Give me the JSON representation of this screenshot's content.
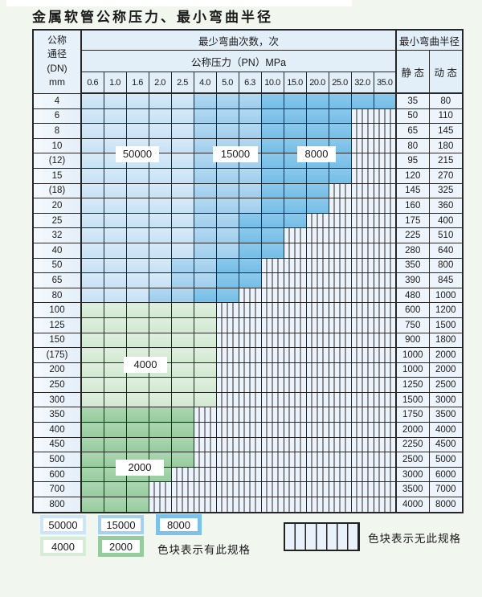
{
  "title": "金属软管公称压力、最小弯曲半径",
  "table": {
    "header": {
      "dn_lines": [
        "公称",
        "通径",
        "(DN)",
        "mm"
      ],
      "bend_cycles": "最少弯曲次数，次",
      "pressure": "公称压力（PN）MPa",
      "pressures": [
        "0.6",
        "1.0",
        "1.6",
        "2.0",
        "2.5",
        "4.0",
        "5.0",
        "6.3",
        "10.0",
        "15.0",
        "20.0",
        "25.0",
        "32.0",
        "35.0"
      ],
      "min_radius": "最小弯曲半径",
      "static": "静 态",
      "dynamic": "动 态"
    },
    "cell_legend": {
      "b1": {
        "cycles": "50000",
        "color": "#cde5f6"
      },
      "b2": {
        "cycles": "15000",
        "color": "#a5d1ee"
      },
      "b3": {
        "cycles": "8000",
        "color": "#7cc1e8"
      },
      "g1": {
        "cycles": "4000",
        "color": "#d7ecd7"
      },
      "g2": {
        "cycles": "2000",
        "color": "#96cb9d"
      },
      "x": {
        "meaning": "无此规格 (hatched)"
      }
    },
    "rows": [
      {
        "dn": "4",
        "static": "35",
        "dynamic": "80",
        "cells": [
          "b1",
          "b1",
          "b1",
          "b1",
          "b1",
          "b2",
          "b2",
          "b2",
          "b3",
          "b3",
          "b3",
          "b3",
          "b3",
          "b3"
        ]
      },
      {
        "dn": "6",
        "static": "50",
        "dynamic": "110",
        "cells": [
          "b1",
          "b1",
          "b1",
          "b1",
          "b1",
          "b2",
          "b2",
          "b2",
          "b3",
          "b3",
          "b3",
          "b3",
          "x",
          "x"
        ]
      },
      {
        "dn": "8",
        "static": "65",
        "dynamic": "145",
        "cells": [
          "b1",
          "b1",
          "b1",
          "b1",
          "b1",
          "b2",
          "b2",
          "b2",
          "b3",
          "b3",
          "b3",
          "b3",
          "x",
          "x"
        ]
      },
      {
        "dn": "10",
        "static": "80",
        "dynamic": "180",
        "cells": [
          "b1",
          "b1",
          "b1",
          "b1",
          "b1",
          "b2",
          "b2",
          "b2",
          "b3",
          "b3",
          "b3",
          "b3",
          "x",
          "x"
        ]
      },
      {
        "dn": "(12)",
        "static": "95",
        "dynamic": "215",
        "cells": [
          "b1",
          "b1",
          "b1",
          "b1",
          "b1",
          "b2",
          "b2",
          "b2",
          "b3",
          "b3",
          "b3",
          "b3",
          "x",
          "x"
        ]
      },
      {
        "dn": "15",
        "static": "120",
        "dynamic": "270",
        "cells": [
          "b1",
          "b1",
          "b1",
          "b1",
          "b1",
          "b2",
          "b2",
          "b2",
          "b3",
          "b3",
          "b3",
          "b3",
          "x",
          "x"
        ]
      },
      {
        "dn": "(18)",
        "static": "145",
        "dynamic": "325",
        "cells": [
          "b1",
          "b1",
          "b1",
          "b1",
          "b1",
          "b2",
          "b2",
          "b2",
          "b3",
          "b3",
          "b3",
          "x",
          "x",
          "x"
        ]
      },
      {
        "dn": "20",
        "static": "160",
        "dynamic": "360",
        "cells": [
          "b1",
          "b1",
          "b1",
          "b1",
          "b1",
          "b2",
          "b2",
          "b2",
          "b3",
          "b3",
          "b3",
          "x",
          "x",
          "x"
        ]
      },
      {
        "dn": "25",
        "static": "175",
        "dynamic": "400",
        "cells": [
          "b1",
          "b1",
          "b1",
          "b1",
          "b1",
          "b2",
          "b2",
          "b3",
          "b3",
          "b3",
          "x",
          "x",
          "x",
          "x"
        ]
      },
      {
        "dn": "32",
        "static": "225",
        "dynamic": "510",
        "cells": [
          "b1",
          "b1",
          "b1",
          "b1",
          "b1",
          "b2",
          "b2",
          "b3",
          "b3",
          "x",
          "x",
          "x",
          "x",
          "x"
        ]
      },
      {
        "dn": "40",
        "static": "280",
        "dynamic": "640",
        "cells": [
          "b1",
          "b1",
          "b1",
          "b1",
          "b1",
          "b2",
          "b2",
          "b3",
          "b3",
          "x",
          "x",
          "x",
          "x",
          "x"
        ]
      },
      {
        "dn": "50",
        "static": "350",
        "dynamic": "800",
        "cells": [
          "b1",
          "b1",
          "b1",
          "b1",
          "b2",
          "b2",
          "b3",
          "b3",
          "x",
          "x",
          "x",
          "x",
          "x",
          "x"
        ]
      },
      {
        "dn": "65",
        "static": "390",
        "dynamic": "845",
        "cells": [
          "b1",
          "b1",
          "b1",
          "b1",
          "b2",
          "b2",
          "b3",
          "b3",
          "x",
          "x",
          "x",
          "x",
          "x",
          "x"
        ]
      },
      {
        "dn": "80",
        "static": "480",
        "dynamic": "1000",
        "cells": [
          "b1",
          "b1",
          "b1",
          "b2",
          "b2",
          "b3",
          "b3",
          "x",
          "x",
          "x",
          "x",
          "x",
          "x",
          "x"
        ]
      },
      {
        "dn": "100",
        "static": "600",
        "dynamic": "1200",
        "cells": [
          "g1",
          "g1",
          "g1",
          "g1",
          "g1",
          "g1",
          "x",
          "x",
          "x",
          "x",
          "x",
          "x",
          "x",
          "x"
        ]
      },
      {
        "dn": "125",
        "static": "750",
        "dynamic": "1500",
        "cells": [
          "g1",
          "g1",
          "g1",
          "g1",
          "g1",
          "g1",
          "x",
          "x",
          "x",
          "x",
          "x",
          "x",
          "x",
          "x"
        ]
      },
      {
        "dn": "150",
        "static": "900",
        "dynamic": "1800",
        "cells": [
          "g1",
          "g1",
          "g1",
          "g1",
          "g1",
          "g1",
          "x",
          "x",
          "x",
          "x",
          "x",
          "x",
          "x",
          "x"
        ]
      },
      {
        "dn": "(175)",
        "static": "1000",
        "dynamic": "2000",
        "cells": [
          "g1",
          "g1",
          "g1",
          "g1",
          "g1",
          "g1",
          "x",
          "x",
          "x",
          "x",
          "x",
          "x",
          "x",
          "x"
        ]
      },
      {
        "dn": "200",
        "static": "1000",
        "dynamic": "2000",
        "cells": [
          "g1",
          "g1",
          "g1",
          "g1",
          "g1",
          "g1",
          "x",
          "x",
          "x",
          "x",
          "x",
          "x",
          "x",
          "x"
        ]
      },
      {
        "dn": "250",
        "static": "1250",
        "dynamic": "2500",
        "cells": [
          "g1",
          "g1",
          "g1",
          "g1",
          "g1",
          "g1",
          "x",
          "x",
          "x",
          "x",
          "x",
          "x",
          "x",
          "x"
        ]
      },
      {
        "dn": "300",
        "static": "1500",
        "dynamic": "3000",
        "cells": [
          "g1",
          "g1",
          "g1",
          "g1",
          "g1",
          "g1",
          "x",
          "x",
          "x",
          "x",
          "x",
          "x",
          "x",
          "x"
        ]
      },
      {
        "dn": "350",
        "static": "1750",
        "dynamic": "3500",
        "cells": [
          "g2",
          "g2",
          "g2",
          "g2",
          "g2",
          "x",
          "x",
          "x",
          "x",
          "x",
          "x",
          "x",
          "x",
          "x"
        ]
      },
      {
        "dn": "400",
        "static": "2000",
        "dynamic": "4000",
        "cells": [
          "g2",
          "g2",
          "g2",
          "g2",
          "g2",
          "x",
          "x",
          "x",
          "x",
          "x",
          "x",
          "x",
          "x",
          "x"
        ]
      },
      {
        "dn": "450",
        "static": "2250",
        "dynamic": "4500",
        "cells": [
          "g2",
          "g2",
          "g2",
          "g2",
          "g2",
          "x",
          "x",
          "x",
          "x",
          "x",
          "x",
          "x",
          "x",
          "x"
        ]
      },
      {
        "dn": "500",
        "static": "2500",
        "dynamic": "5000",
        "cells": [
          "g2",
          "g2",
          "g2",
          "g2",
          "g2",
          "x",
          "x",
          "x",
          "x",
          "x",
          "x",
          "x",
          "x",
          "x"
        ]
      },
      {
        "dn": "600",
        "static": "3000",
        "dynamic": "6000",
        "cells": [
          "g2",
          "g2",
          "g2",
          "g2",
          "x",
          "x",
          "x",
          "x",
          "x",
          "x",
          "x",
          "x",
          "x",
          "x"
        ]
      },
      {
        "dn": "700",
        "static": "3500",
        "dynamic": "7000",
        "cells": [
          "g2",
          "g2",
          "g2",
          "x",
          "x",
          "x",
          "x",
          "x",
          "x",
          "x",
          "x",
          "x",
          "x",
          "x"
        ]
      },
      {
        "dn": "800",
        "static": "4000",
        "dynamic": "8000",
        "cells": [
          "g2",
          "g2",
          "g2",
          "x",
          "x",
          "x",
          "x",
          "x",
          "x",
          "x",
          "x",
          "x",
          "x",
          "x"
        ]
      }
    ]
  },
  "region_labels": {
    "l50000": "50000",
    "l15000": "15000",
    "l8000": "8000",
    "l4000": "4000",
    "l2000": "2000"
  },
  "legend": {
    "items": [
      {
        "label": "50000",
        "color": "#cde5f6"
      },
      {
        "label": "15000",
        "color": "#a5d1ee"
      },
      {
        "label": "8000",
        "color": "#7cc1e8"
      },
      {
        "label": "4000",
        "color": "#d7ecd7"
      },
      {
        "label": "2000",
        "color": "#96cb9d"
      }
    ],
    "has_spec_text": "色块表示有此规格",
    "no_spec_text": "色块表示无此规格"
  }
}
